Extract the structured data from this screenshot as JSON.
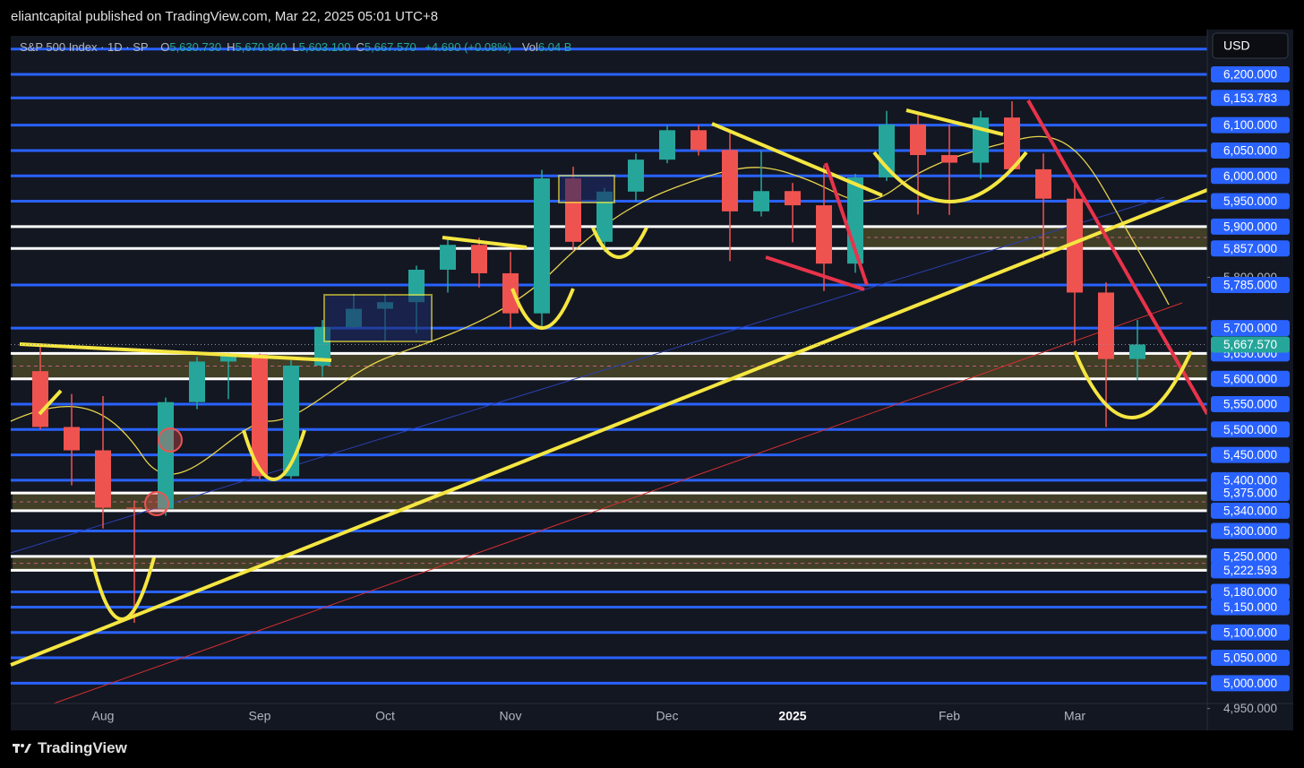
{
  "chart_data": {
    "type": "candlestick",
    "title": "eliantcapital published on TradingView.com, Mar 22, 2025 05:01 UTC+8",
    "symbol": "S&P 500 Index · 1D · SP",
    "ohlc": [
      {
        "label": "O",
        "value": "5,630.730"
      },
      {
        "label": "H",
        "value": "5,670.840"
      },
      {
        "label": "L",
        "value": "5,603.100"
      },
      {
        "label": "C",
        "value": "5,667.570"
      }
    ],
    "change": "+4.690 (+0.08%)",
    "volume": {
      "label": "Vol",
      "value": "6.04 B"
    },
    "currency": "USD",
    "brand": "TradingView",
    "categories": [
      null,
      null,
      "Aug",
      null,
      null,
      null,
      null,
      "Sep",
      null,
      null,
      null,
      "Oct",
      null,
      null,
      null,
      "Nov",
      null,
      null,
      null,
      null,
      "Dec",
      null,
      null,
      null,
      "2025",
      null,
      null,
      null,
      null,
      "Feb",
      null,
      null,
      null,
      "Mar",
      null,
      null
    ],
    "open": [
      5615,
      5505,
      5459,
      5346,
      5344,
      5554,
      5634,
      5648,
      5408,
      5626,
      5702,
      5738,
      5751,
      5815,
      5864,
      5808,
      5729,
      5995,
      5870,
      5969,
      6032,
      6090,
      6051,
      5930,
      5970,
      5942,
      5827,
      5997,
      6101,
      6041,
      6026,
      6115,
      6013,
      5955,
      5770,
      5639
    ],
    "high": [
      5670,
      5570,
      5566,
      5360,
      5563,
      5643,
      5651,
      5650,
      5636,
      5716,
      5767,
      5765,
      5823,
      5878,
      5878,
      5850,
      6012,
      6018,
      5976,
      6044,
      6099,
      6100,
      6085,
      6049,
      5986,
      6021,
      6004,
      6128,
      6120,
      6101,
      6128,
      6147,
      6044,
      5987,
      5790,
      5716
    ],
    "low": [
      5500,
      5390,
      5305,
      5119,
      5330,
      5540,
      5560,
      5402,
      5403,
      5604,
      5700,
      5675,
      5690,
      5770,
      5780,
      5700,
      5700,
      5853,
      5850,
      5950,
      6025,
      6040,
      5832,
      5920,
      5869,
      5773,
      5809,
      5990,
      5924,
      5923,
      5994,
      6009,
      5837,
      5666,
      5505,
      5597
    ],
    "close": [
      5505,
      5459,
      5346,
      5344,
      5554,
      5634,
      5648,
      5408,
      5626,
      5702,
      5738,
      5751,
      5815,
      5864,
      5808,
      5729,
      5995,
      5870,
      5969,
      6032,
      6090,
      6051,
      5930,
      5970,
      5942,
      5827,
      5997,
      6101,
      6041,
      6026,
      6115,
      6013,
      5955,
      5770,
      5639,
      5667.57
    ],
    "up_color": "#26a69a",
    "down_color": "#ef5350",
    "ylim": [
      4960,
      6276
    ],
    "yticks": [
      {
        "value": 6200,
        "label": "6,200.000"
      },
      {
        "value": 6153.783,
        "label": "6,153.783"
      },
      {
        "value": 6100,
        "label": "6,100.000"
      },
      {
        "value": 6050,
        "label": "6,050.000"
      },
      {
        "value": 6000,
        "label": "6,000.000"
      },
      {
        "value": 5950,
        "label": "5,950.000"
      },
      {
        "value": 5900,
        "label": "5,900.000"
      },
      {
        "value": 5857,
        "label": "5,857.000"
      },
      {
        "value": 5800,
        "label": "5,800.000"
      },
      {
        "value": 5785,
        "label": "5,785.000"
      },
      {
        "value": 5700,
        "label": "5,700.000"
      },
      {
        "value": 5650,
        "label": "5,650.000"
      },
      {
        "value": 5600,
        "label": "5,600.000"
      },
      {
        "value": 5550,
        "label": "5,550.000"
      },
      {
        "value": 5500,
        "label": "5,500.000"
      },
      {
        "value": 5450,
        "label": "5,450.000"
      },
      {
        "value": 5400,
        "label": "5,400.000"
      },
      {
        "value": 5375,
        "label": "5,375.000"
      },
      {
        "value": 5340,
        "label": "5,340.000"
      },
      {
        "value": 5300,
        "label": "5,300.000"
      },
      {
        "value": 5250,
        "label": "5,250.000"
      },
      {
        "value": 5222.593,
        "label": "5,222.593"
      },
      {
        "value": 5180,
        "label": "5,180.000"
      },
      {
        "value": 5150,
        "label": "5,150.000"
      },
      {
        "value": 5100,
        "label": "5,100.000"
      },
      {
        "value": 5050,
        "label": "5,050.000"
      },
      {
        "value": 5000,
        "label": "5,000.000"
      },
      {
        "value": 4950,
        "label": "4,950.000"
      }
    ],
    "last": {
      "value": 5667.57,
      "label": "5,667.570",
      "color": "#26a69a"
    },
    "levels": [
      {
        "value": 6250,
        "color": "#2962ff"
      },
      {
        "value": 6200,
        "color": "#2962ff"
      },
      {
        "value": 6153.783,
        "color": "#2962ff"
      },
      {
        "value": 6100,
        "color": "#2962ff"
      },
      {
        "value": 6050,
        "color": "#2962ff"
      },
      {
        "value": 6000,
        "color": "#2962ff"
      },
      {
        "value": 5950,
        "color": "#2962ff"
      },
      {
        "value": 5900,
        "color": "#ffffff"
      },
      {
        "value": 5857,
        "color": "#ffffff"
      },
      {
        "value": 5785,
        "color": "#2962ff"
      },
      {
        "value": 5700,
        "color": "#2962ff"
      },
      {
        "value": 5650,
        "color": "#ffffff"
      },
      {
        "value": 5600,
        "color": "#ffffff"
      },
      {
        "value": 5550,
        "color": "#2962ff"
      },
      {
        "value": 5500,
        "color": "#2962ff"
      },
      {
        "value": 5450,
        "color": "#2962ff"
      },
      {
        "value": 5400,
        "color": "#2962ff"
      },
      {
        "value": 5375,
        "color": "#ffffff"
      },
      {
        "value": 5340,
        "color": "#ffffff"
      },
      {
        "value": 5300,
        "color": "#2962ff"
      },
      {
        "value": 5250,
        "color": "#ffffff"
      },
      {
        "value": 5222.593,
        "color": "#ffffff"
      },
      {
        "value": 5180,
        "color": "#2962ff"
      },
      {
        "value": 5150,
        "color": "#2962ff"
      },
      {
        "value": 5100,
        "color": "#2962ff"
      },
      {
        "value": 5050,
        "color": "#2962ff"
      },
      {
        "value": 5000,
        "color": "#2962ff"
      }
    ],
    "zones": [
      [
        5857,
        5900
      ],
      [
        5600,
        5650
      ],
      [
        5340,
        5375
      ],
      [
        5222.593,
        5250
      ]
    ],
    "zone_color": "#4a4627"
  }
}
